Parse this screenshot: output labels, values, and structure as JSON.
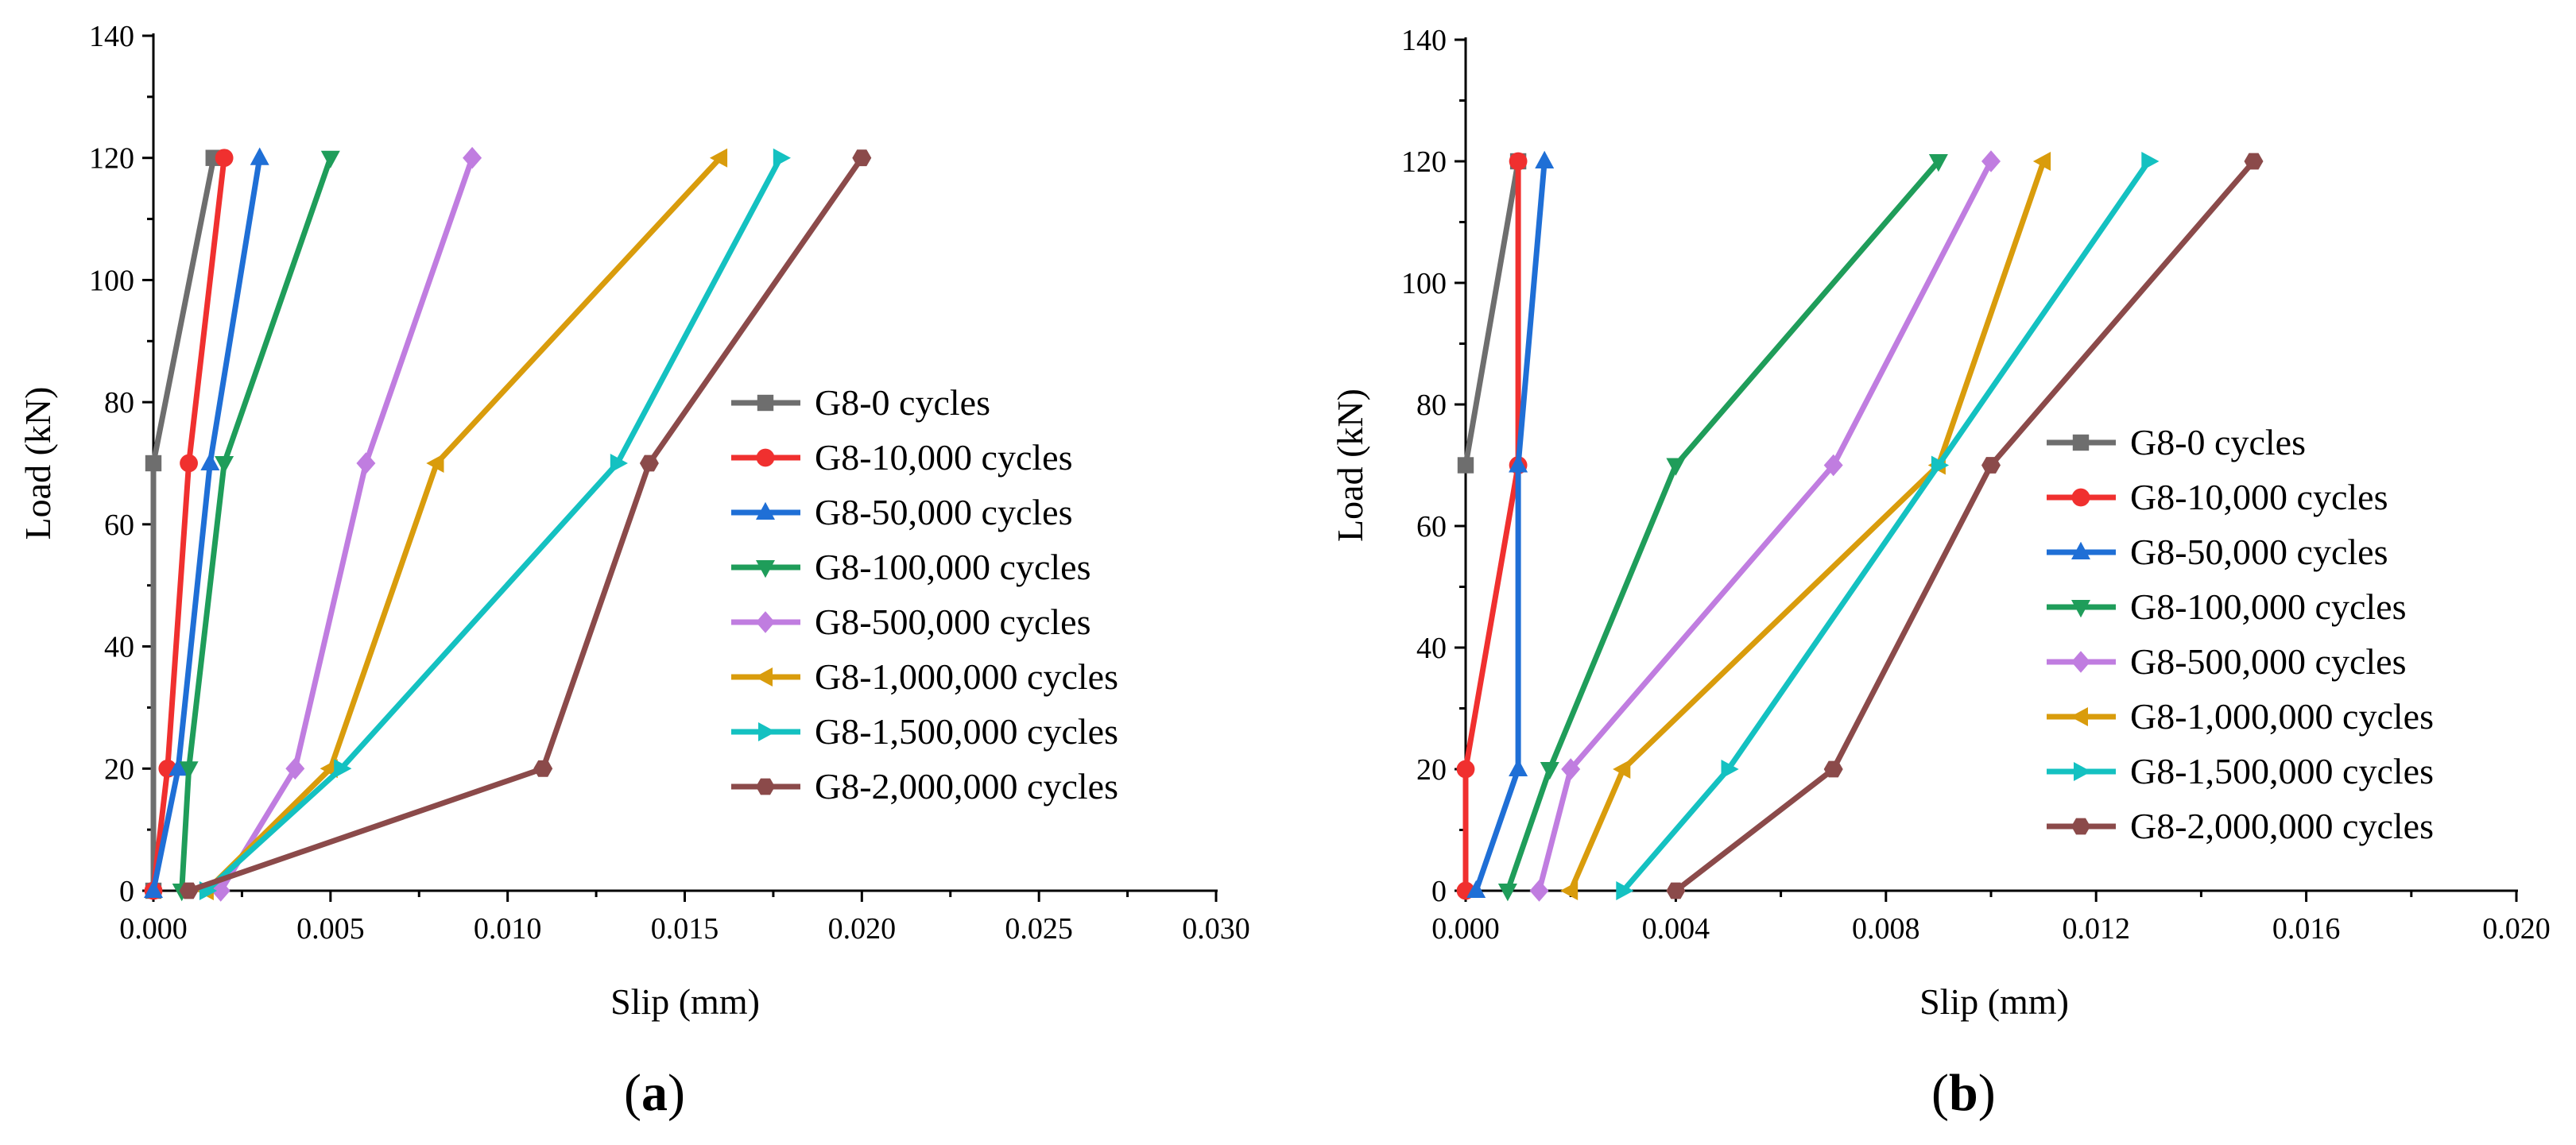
{
  "chart_data": [
    {
      "type": "line",
      "panel_label_parts": [
        "(",
        "a",
        ")"
      ],
      "xlabel": "Slip (mm)",
      "ylabel": "Load (kN)",
      "xlim": [
        0,
        0.03
      ],
      "ylim": [
        0,
        140
      ],
      "x_ticks": [
        "0.000",
        "0.005",
        "0.010",
        "0.015",
        "0.020",
        "0.025",
        "0.030"
      ],
      "y_ticks": [
        "0",
        "20",
        "40",
        "60",
        "80",
        "100",
        "120",
        "140"
      ],
      "legend_position": "center-right",
      "series": [
        {
          "name": "G8-0 cycles",
          "color": "#6e6e6e",
          "marker": "square",
          "points": [
            [
              0.0,
              0
            ],
            [
              0.0,
              70
            ],
            [
              0.0017,
              120
            ]
          ]
        },
        {
          "name": "G8-10,000 cycles",
          "color": "#f0302f",
          "marker": "circle",
          "points": [
            [
              0.0,
              0
            ],
            [
              0.0004,
              20
            ],
            [
              0.001,
              70
            ],
            [
              0.002,
              120
            ]
          ]
        },
        {
          "name": "G8-50,000 cycles",
          "color": "#1f6fd6",
          "marker": "triangle-up",
          "points": [
            [
              0.0,
              0
            ],
            [
              0.0007,
              20
            ],
            [
              0.0016,
              70
            ],
            [
              0.003,
              120
            ]
          ]
        },
        {
          "name": "G8-100,000 cycles",
          "color": "#1f9d5a",
          "marker": "triangle-down",
          "points": [
            [
              0.0008,
              0
            ],
            [
              0.001,
              20
            ],
            [
              0.002,
              70
            ],
            [
              0.005,
              120
            ]
          ]
        },
        {
          "name": "G8-500,000 cycles",
          "color": "#c07de0",
          "marker": "diamond",
          "points": [
            [
              0.0019,
              0
            ],
            [
              0.004,
              20
            ],
            [
              0.006,
              70
            ],
            [
              0.009,
              120
            ]
          ]
        },
        {
          "name": "G8-1,000,000 cycles",
          "color": "#d99c0c",
          "marker": "triangle-left",
          "points": [
            [
              0.0015,
              0
            ],
            [
              0.005,
              20
            ],
            [
              0.008,
              70
            ],
            [
              0.016,
              120
            ]
          ]
        },
        {
          "name": "G8-1,500,000 cycles",
          "color": "#14c1c1",
          "marker": "triangle-right",
          "points": [
            [
              0.0015,
              0
            ],
            [
              0.0053,
              20
            ],
            [
              0.0131,
              70
            ],
            [
              0.0177,
              120
            ]
          ]
        },
        {
          "name": "G8-2,000,000 cycles",
          "color": "#8b4a4a",
          "marker": "hexagon",
          "points": [
            [
              0.001,
              0
            ],
            [
              0.011,
              20
            ],
            [
              0.014,
              70
            ],
            [
              0.02,
              120
            ]
          ]
        }
      ]
    },
    {
      "type": "line",
      "panel_label_parts": [
        "(",
        "b",
        ")"
      ],
      "xlabel": "Slip (mm)",
      "ylabel": "Load (kN)",
      "xlim": [
        0,
        0.02
      ],
      "ylim": [
        0,
        140
      ],
      "x_ticks": [
        "0.000",
        "0.004",
        "0.008",
        "0.012",
        "0.016",
        "0.020"
      ],
      "y_ticks": [
        "0",
        "20",
        "40",
        "60",
        "80",
        "100",
        "120",
        "140"
      ],
      "legend_position": "center-right",
      "series": [
        {
          "name": "G8-0 cycles",
          "color": "#6e6e6e",
          "marker": "square",
          "points": [
            [
              0.0,
              70
            ],
            [
              0.001,
              120
            ]
          ]
        },
        {
          "name": "G8-10,000 cycles",
          "color": "#f0302f",
          "marker": "circle",
          "points": [
            [
              0.0,
              0
            ],
            [
              0.0,
              20
            ],
            [
              0.001,
              70
            ],
            [
              0.001,
              120
            ]
          ]
        },
        {
          "name": "G8-50,000 cycles",
          "color": "#1f6fd6",
          "marker": "triangle-up",
          "points": [
            [
              0.0002,
              0
            ],
            [
              0.001,
              20
            ],
            [
              0.001,
              70
            ],
            [
              0.0015,
              120
            ]
          ]
        },
        {
          "name": "G8-100,000 cycles",
          "color": "#1f9d5a",
          "marker": "triangle-down",
          "points": [
            [
              0.0008,
              0
            ],
            [
              0.0016,
              20
            ],
            [
              0.004,
              70
            ],
            [
              0.009,
              120
            ]
          ]
        },
        {
          "name": "G8-500,000 cycles",
          "color": "#c07de0",
          "marker": "diamond",
          "points": [
            [
              0.0014,
              0
            ],
            [
              0.002,
              20
            ],
            [
              0.007,
              70
            ],
            [
              0.01,
              120
            ]
          ]
        },
        {
          "name": "G8-1,000,000 cycles",
          "color": "#d99c0c",
          "marker": "triangle-left",
          "points": [
            [
              0.002,
              0
            ],
            [
              0.003,
              20
            ],
            [
              0.009,
              70
            ],
            [
              0.011,
              120
            ]
          ]
        },
        {
          "name": "G8-1,500,000 cycles",
          "color": "#14c1c1",
          "marker": "triangle-right",
          "points": [
            [
              0.003,
              0
            ],
            [
              0.005,
              20
            ],
            [
              0.009,
              70
            ],
            [
              0.013,
              120
            ]
          ]
        },
        {
          "name": "G8-2,000,000 cycles",
          "color": "#8b4a4a",
          "marker": "hexagon",
          "points": [
            [
              0.004,
              0
            ],
            [
              0.007,
              20
            ],
            [
              0.01,
              70
            ],
            [
              0.015,
              120
            ]
          ]
        }
      ]
    }
  ]
}
